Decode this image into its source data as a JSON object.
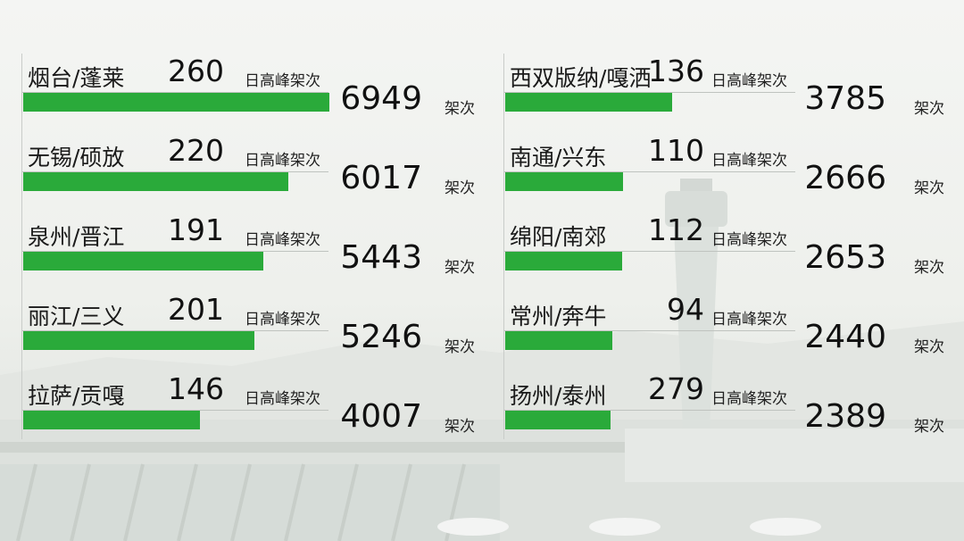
{
  "peak_unit": "日高峰架次",
  "total_unit": "架次",
  "colors": {
    "bar": "#2aaa3a",
    "text": "#111111"
  },
  "chart_data": {
    "type": "bar",
    "orientation": "horizontal",
    "series": [
      {
        "values": [
          6949,
          6017,
          5443,
          5246,
          4007,
          3785,
          2666,
          2653,
          2440,
          2389
        ]
      }
    ],
    "rows": [
      {
        "city": "烟台/蓬莱",
        "peak": "260",
        "total": "6949",
        "value": 6949
      },
      {
        "city": "无锡/硕放",
        "peak": "220",
        "total": "6017",
        "value": 6017
      },
      {
        "city": "泉州/晋江",
        "peak": "191",
        "total": "5443",
        "value": 5443
      },
      {
        "city": "丽江/三义",
        "peak": "201",
        "total": "5246",
        "value": 5246
      },
      {
        "city": "拉萨/贡嘎",
        "peak": "146",
        "total": "4007",
        "value": 4007
      },
      {
        "city": "西双版纳/嘎洒",
        "peak": "136",
        "total": "3785",
        "value": 3785
      },
      {
        "city": "南通/兴东",
        "peak": "110",
        "total": "2666",
        "value": 2666
      },
      {
        "city": "绵阳/南郊",
        "peak": "112",
        "total": "2653",
        "value": 2653
      },
      {
        "city": "常州/奔牛",
        "peak": "94",
        "total": "2440",
        "value": 2440
      },
      {
        "city": "扬州/泰州",
        "peak": "279",
        "total": "2389",
        "value": 2389
      }
    ]
  }
}
